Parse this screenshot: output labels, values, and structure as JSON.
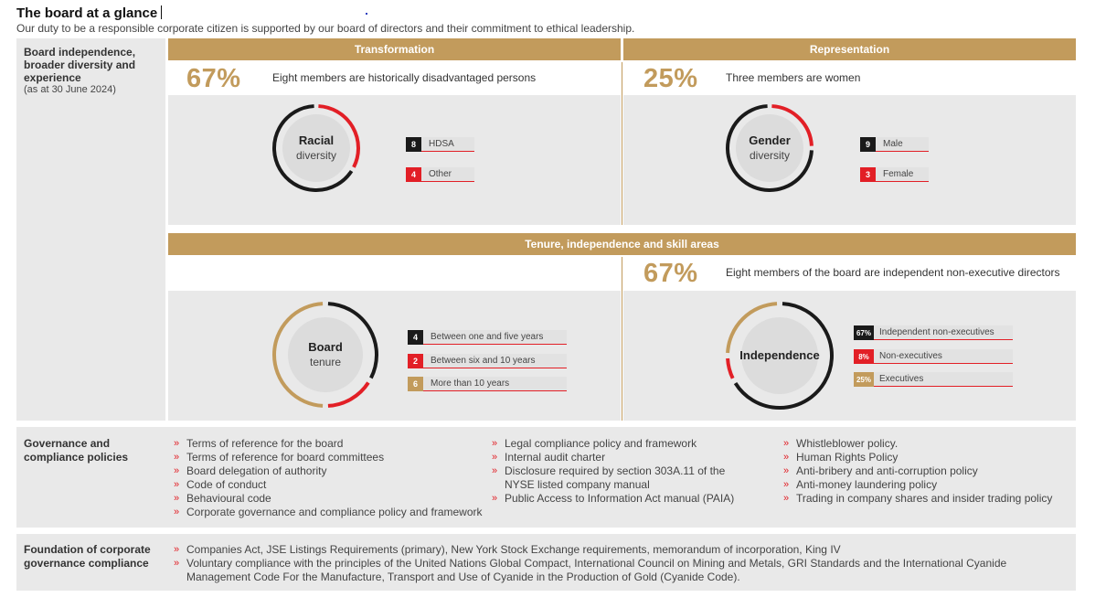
{
  "header": {
    "title": "The board at a glance",
    "subtitle": "Our duty to be a responsible corporate citizen is supported by our board of directors and their commitment to ethical leadership."
  },
  "board_section": {
    "heading": "Board independence, broader diversity and experience",
    "subheading": "(as at 30 June 2024)"
  },
  "transformation": {
    "bar_label": "Transformation",
    "pct": "67%",
    "text": "Eight members are historically disadvantaged persons",
    "chart": {
      "title": "Racial",
      "subtitle": "diversity",
      "legend": [
        {
          "value": "8",
          "label": "HDSA",
          "color": "#1a1a1a"
        },
        {
          "value": "4",
          "label": "Other",
          "color": "#e21f26"
        }
      ]
    }
  },
  "representation": {
    "bar_label": "Representation",
    "pct": "25%",
    "text": "Three members are women",
    "chart": {
      "title": "Gender",
      "subtitle": "diversity",
      "legend": [
        {
          "value": "9",
          "label": "Male",
          "color": "#1a1a1a"
        },
        {
          "value": "3",
          "label": "Female",
          "color": "#e21f26"
        }
      ]
    }
  },
  "tenure": {
    "bar_label": "Tenure, independence and skill areas",
    "pct": "67%",
    "text": "Eight members of the board are independent non-executive directors",
    "tenure_chart": {
      "title": "Board",
      "subtitle": "tenure",
      "legend": [
        {
          "value": "4",
          "label": "Between one and five years",
          "color": "#1a1a1a"
        },
        {
          "value": "2",
          "label": "Between six and 10 years",
          "color": "#e21f26"
        },
        {
          "value": "6",
          "label": "More than 10 years",
          "color": "#c29b5c"
        }
      ]
    },
    "independence_chart": {
      "title": "Independence",
      "legend": [
        {
          "value": "67%",
          "label": "Independent non-executives",
          "color": "#1a1a1a"
        },
        {
          "value": "8%",
          "label": "Non-executives",
          "color": "#e21f26"
        },
        {
          "value": "25%",
          "label": "Executives",
          "color": "#c29b5c"
        }
      ]
    }
  },
  "governance": {
    "heading": "Governance and compliance policies",
    "col1": [
      "Terms of reference for the board",
      "Terms of reference for board committees",
      "Board delegation of authority",
      "Code of conduct",
      "Behavioural code",
      "Corporate governance and compliance policy and framework"
    ],
    "col2": [
      "Legal compliance policy and framework",
      "Internal audit charter",
      "Disclosure required by section 303A.11 of the NYSE listed company manual",
      "Public Access to Information Act manual (PAIA)"
    ],
    "col3": [
      "Whistleblower policy.",
      "Human Rights Policy",
      "Anti-bribery and anti-corruption policy",
      "Anti-money laundering policy",
      "Trading in company shares and insider trading policy"
    ]
  },
  "foundation": {
    "heading": "Foundation of corporate governance compliance",
    "items": [
      "Companies Act, JSE Listings Requirements (primary), New York Stock Exchange requirements, memorandum of incorporation, King IV",
      "Voluntary compliance with the principles of the United Nations Global Compact, International Council on Mining and Metals, GRI Standards and the International Cyanide Management Code For the Manufacture, Transport and Use of Cyanide in the Production of Gold (Cyanide Code)."
    ]
  },
  "colors": {
    "gold": "#c29b5c",
    "red": "#e21f26",
    "black": "#1a1a1a",
    "panel": "#e9e9e9"
  }
}
